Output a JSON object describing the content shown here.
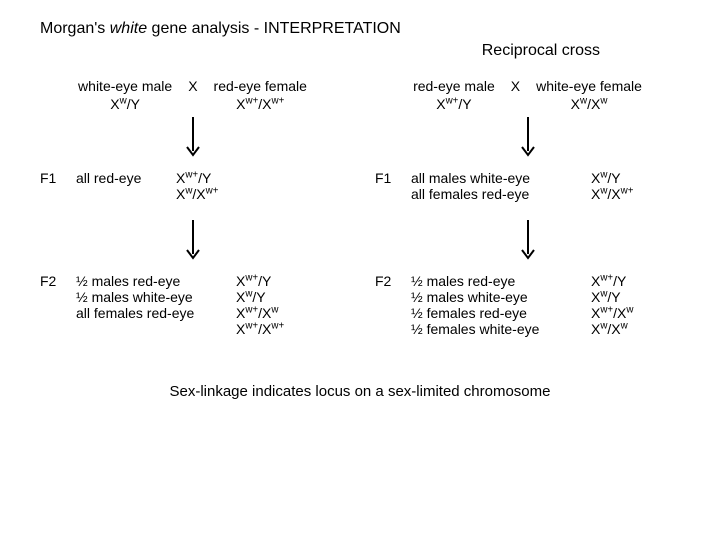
{
  "title_prefix": "Morgan's ",
  "title_gene": "white",
  "title_suffix": " gene analysis - INTERPRETATION",
  "subtitle": "Reciprocal cross",
  "gen_labels": {
    "f1": "F1",
    "f2": "F2"
  },
  "cross_symbol": "X",
  "arrow": {
    "width": 14,
    "height": 40,
    "stroke": "#000000",
    "stroke_width": 2
  },
  "left": {
    "parents": {
      "p1": {
        "pheno": "white-eye male",
        "geno_html": "X<sup>w</sup>/Y"
      },
      "p2": {
        "pheno": "red-eye female",
        "geno_html": "X<sup>w+</sup>/X<sup>w+</sup>"
      }
    },
    "f1": [
      {
        "desc": "all red-eye",
        "geno_html": "X<sup>w+</sup>/Y"
      },
      {
        "desc": "",
        "geno_html": "X<sup>w</sup>/X<sup>w+</sup>"
      }
    ],
    "f2": [
      {
        "desc": "½ males red-eye",
        "geno_html": "X<sup>w+</sup>/Y"
      },
      {
        "desc": "½ males white-eye",
        "geno_html": "X<sup>w</sup>/Y"
      },
      {
        "desc": "all females red-eye",
        "geno_html": "X<sup>w+</sup>/X<sup>w</sup>"
      },
      {
        "desc": "",
        "geno_html": "X<sup>w+</sup>/X<sup>w+</sup>"
      }
    ]
  },
  "right": {
    "parents": {
      "p1": {
        "pheno": "red-eye male",
        "geno_html": "X<sup>w+</sup>/Y"
      },
      "p2": {
        "pheno": "white-eye female",
        "geno_html": "X<sup>w</sup>/X<sup>w</sup>"
      }
    },
    "f1": [
      {
        "desc": "all males white-eye",
        "geno_html": "X<sup>w</sup>/Y"
      },
      {
        "desc": "all females red-eye",
        "geno_html": "X<sup>w</sup>/X<sup>w+</sup>"
      }
    ],
    "f2": [
      {
        "desc": "½ males red-eye",
        "geno_html": "X<sup>w+</sup>/Y"
      },
      {
        "desc": "½ males white-eye",
        "geno_html": "X<sup>w</sup>/Y"
      },
      {
        "desc": "½ females red-eye",
        "geno_html": "X<sup>w+</sup>/X<sup>w</sup>"
      },
      {
        "desc": "½ females white-eye",
        "geno_html": "X<sup>w</sup>/X<sup>w</sup>"
      }
    ]
  },
  "conclusion": "Sex-linkage indicates locus on a sex-limited chromosome"
}
